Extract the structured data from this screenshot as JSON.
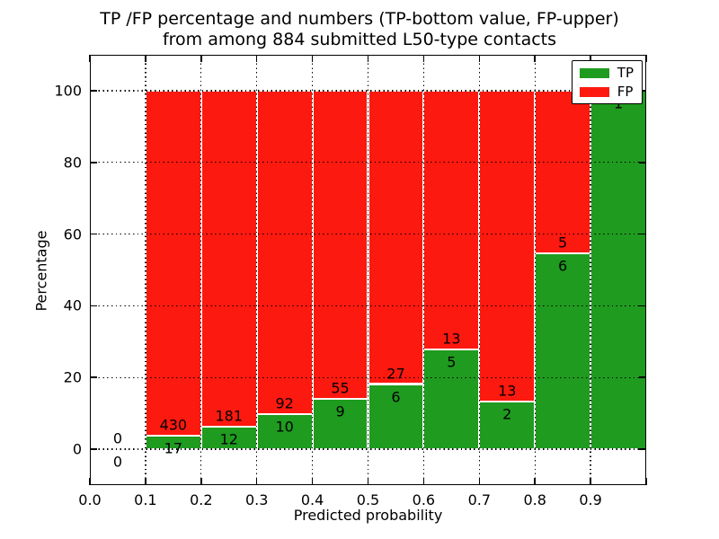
{
  "chart_data": {
    "type": "bar",
    "stacked": true,
    "title_lines": [
      "TP /FP percentage and numbers (TP-bottom value, FP-upper)",
      "from among 884 submitted L50-type contacts"
    ],
    "xlabel": "Predicted probability",
    "ylabel": "Percentage",
    "xlim": [
      0.0,
      1.0
    ],
    "ylim": [
      -10,
      110
    ],
    "grid": "dotted",
    "total_contacts": 884,
    "bin_width": 0.1,
    "colors": {
      "tp": "#1f9b1f",
      "fp": "#fc190f"
    },
    "x_ticks": {
      "values": [
        0.0,
        0.1,
        0.2,
        0.3,
        0.4,
        0.5,
        0.6,
        0.7,
        0.8,
        0.9,
        1.0
      ],
      "labels": [
        "0.0",
        "0.1",
        "0.2",
        "0.3",
        "0.4",
        "0.5",
        "0.6",
        "0.7",
        "0.8",
        "0.9",
        ""
      ]
    },
    "y_ticks": [
      0,
      20,
      40,
      60,
      80,
      100
    ],
    "legend": {
      "position": "upper right",
      "entries": [
        {
          "label": "TP",
          "color": "#1f9b1f"
        },
        {
          "label": "FP",
          "color": "#fc190f"
        }
      ]
    },
    "bins": [
      {
        "x0": 0.0,
        "range": "0.0-0.1",
        "tp": 0,
        "fp": 0
      },
      {
        "x0": 0.1,
        "range": "0.1-0.2",
        "tp": 17,
        "fp": 430
      },
      {
        "x0": 0.2,
        "range": "0.2-0.3",
        "tp": 12,
        "fp": 181
      },
      {
        "x0": 0.3,
        "range": "0.3-0.4",
        "tp": 10,
        "fp": 92
      },
      {
        "x0": 0.4,
        "range": "0.4-0.5",
        "tp": 9,
        "fp": 55
      },
      {
        "x0": 0.5,
        "range": "0.5-0.6",
        "tp": 6,
        "fp": 27
      },
      {
        "x0": 0.6,
        "range": "0.6-0.7",
        "tp": 5,
        "fp": 13
      },
      {
        "x0": 0.7,
        "range": "0.7-0.8",
        "tp": 2,
        "fp": 13
      },
      {
        "x0": 0.8,
        "range": "0.8-0.9",
        "tp": 6,
        "fp": 5
      },
      {
        "x0": 0.9,
        "range": "0.9-1.0",
        "tp": 1,
        "fp": 0
      }
    ]
  }
}
